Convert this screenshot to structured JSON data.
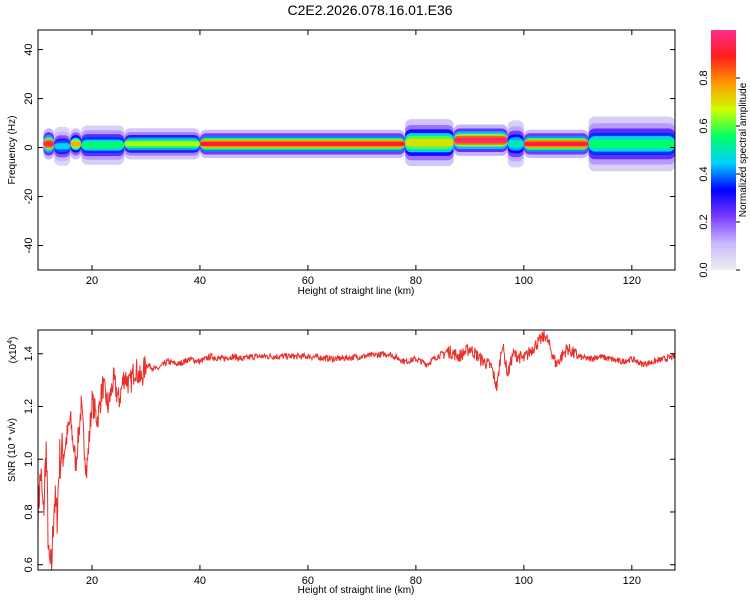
{
  "title": "C2E2.2026.078.16.01.E36",
  "colors": {
    "snr_line": "#e8302c",
    "colorbar": [
      "#eeeeee",
      "#c9b8ff",
      "#7a3cff",
      "#0000ff",
      "#00d0ff",
      "#00ff66",
      "#ccff00",
      "#ff9900",
      "#ff1e1e",
      "#ff2d8a"
    ]
  },
  "chart_data": [
    {
      "type": "heatmap",
      "name": "spectrogram",
      "xlabel": "Height of straight line (km)",
      "ylabel": "Frequency (Hz)",
      "xlim": [
        10,
        128
      ],
      "ylim": [
        -50,
        48
      ],
      "xticks": [
        20,
        40,
        60,
        80,
        100,
        120
      ],
      "yticks": [
        -40,
        -20,
        0,
        20,
        40
      ],
      "ytick_labels": [
        "-40",
        "-20",
        "0",
        "20",
        "40"
      ],
      "colorbar": {
        "label": "Normalized spectral amplitude",
        "range": [
          0.0,
          1.0
        ],
        "ticks": [
          0.0,
          0.2,
          0.4,
          0.6,
          0.8
        ],
        "tick_labels": [
          "0.0",
          "0.2",
          "0.4",
          "0.6",
          "0.8"
        ]
      },
      "bands": [
        {
          "x0": 11,
          "x1": 13,
          "freq": 1.5,
          "halfwidth": 2.0,
          "level": 0.95
        },
        {
          "x0": 13,
          "x1": 16,
          "freq": 0.5,
          "halfwidth": 2.5,
          "level": 0.45
        },
        {
          "x0": 16,
          "x1": 18,
          "freq": 1.5,
          "halfwidth": 2.0,
          "level": 0.75
        },
        {
          "x0": 18,
          "x1": 26,
          "freq": 1.0,
          "halfwidth": 2.5,
          "level": 0.55
        },
        {
          "x0": 26,
          "x1": 40,
          "freq": 1.5,
          "halfwidth": 2.0,
          "level": 0.65
        },
        {
          "x0": 40,
          "x1": 78,
          "freq": 1.5,
          "halfwidth": 1.8,
          "level": 0.9
        },
        {
          "x0": 78,
          "x1": 87,
          "freq": 2.0,
          "halfwidth": 3.0,
          "level": 0.7
        },
        {
          "x0": 87,
          "x1": 97,
          "freq": 3.0,
          "halfwidth": 2.0,
          "level": 0.97
        },
        {
          "x0": 97,
          "x1": 100,
          "freq": 1.5,
          "halfwidth": 3.0,
          "level": 0.5
        },
        {
          "x0": 100,
          "x1": 112,
          "freq": 1.5,
          "halfwidth": 1.8,
          "level": 0.92
        },
        {
          "x0": 112,
          "x1": 128,
          "freq": 1.5,
          "halfwidth": 3.5,
          "level": 0.55
        }
      ]
    },
    {
      "type": "line",
      "name": "snr",
      "xlabel": "Height of straight line (km)",
      "ylabel": "SNR (10 * v/v)",
      "multiplier_label": "(x10",
      "multiplier_exp": "4",
      "xlim": [
        10,
        128
      ],
      "ylim": [
        0.58,
        1.49
      ],
      "xticks": [
        20,
        40,
        60,
        80,
        100,
        120
      ],
      "yticks": [
        0.6,
        0.8,
        1.0,
        1.2,
        1.4
      ],
      "ytick_labels": [
        "0.6",
        "0.8",
        "1.0",
        "1.2",
        "1.4"
      ],
      "series": [
        {
          "name": "SNR",
          "x": [
            10,
            10.5,
            11,
            11.5,
            12,
            12.5,
            13,
            13.5,
            14,
            15,
            16,
            17,
            18,
            19,
            20,
            21,
            22,
            23,
            24,
            25,
            26,
            27,
            28,
            29,
            30,
            32,
            34,
            36,
            38,
            40,
            42,
            44,
            46,
            48,
            50,
            55,
            60,
            65,
            70,
            75,
            78,
            80,
            82,
            84,
            86,
            88,
            90,
            92,
            94,
            95,
            96,
            97,
            98,
            100,
            102,
            104,
            106,
            108,
            110,
            112,
            114,
            116,
            118,
            120,
            122,
            124,
            126,
            128
          ],
          "y": [
            0.8,
            0.95,
            0.78,
            1.05,
            0.6,
            0.58,
            0.85,
            0.78,
            1.0,
            1.05,
            1.15,
            0.98,
            1.2,
            0.95,
            1.22,
            1.15,
            1.28,
            1.2,
            1.3,
            1.22,
            1.32,
            1.28,
            1.35,
            1.3,
            1.36,
            1.34,
            1.37,
            1.36,
            1.38,
            1.37,
            1.39,
            1.38,
            1.39,
            1.38,
            1.39,
            1.39,
            1.39,
            1.38,
            1.39,
            1.4,
            1.37,
            1.38,
            1.36,
            1.39,
            1.41,
            1.39,
            1.42,
            1.38,
            1.35,
            1.27,
            1.44,
            1.32,
            1.4,
            1.38,
            1.43,
            1.47,
            1.36,
            1.42,
            1.39,
            1.38,
            1.39,
            1.38,
            1.37,
            1.38,
            1.36,
            1.37,
            1.38,
            1.39
          ]
        }
      ]
    }
  ]
}
